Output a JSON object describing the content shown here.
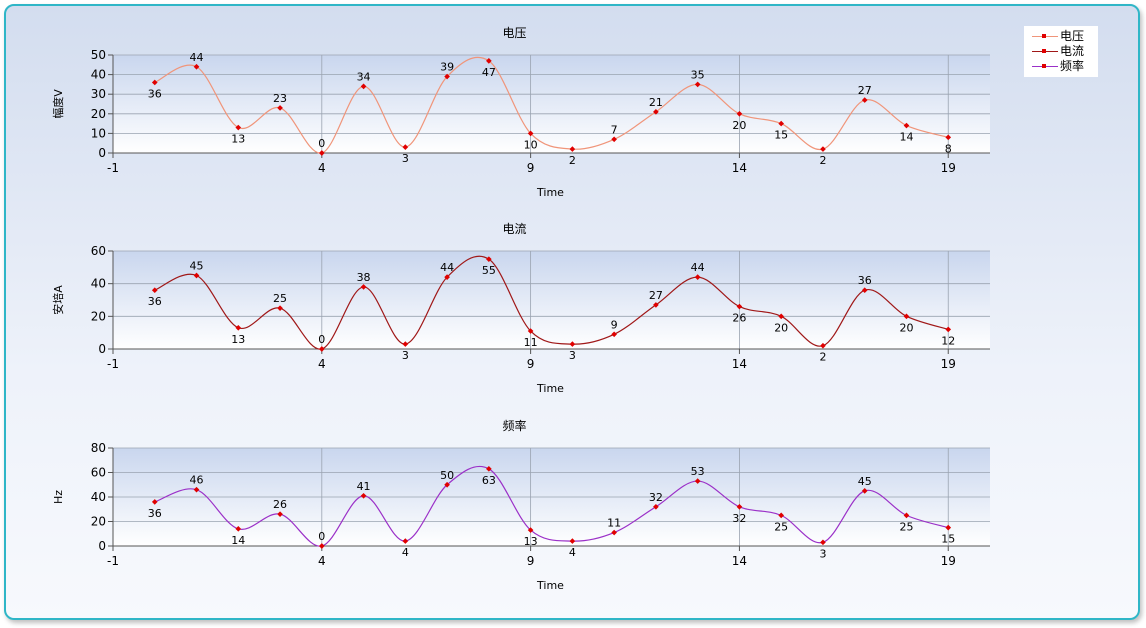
{
  "legend": {
    "items": [
      {
        "label": "电压",
        "color": "#f0957a"
      },
      {
        "label": "电流",
        "color": "#a01818"
      },
      {
        "label": "频率",
        "color": "#9b30c8"
      }
    ]
  },
  "colors": {
    "marker": "#e00000"
  },
  "chart_data": [
    {
      "type": "line",
      "title": "电压",
      "xlabel": "Time",
      "ylabel": "幅度V",
      "xlim": [
        -1,
        20
      ],
      "ylim": [
        0,
        50
      ],
      "x_ticks": [
        "-1",
        "4",
        "9",
        "14",
        "19"
      ],
      "y_ticks": [
        "0",
        "10",
        "20",
        "30",
        "40",
        "50"
      ],
      "smooth": true,
      "series": [
        {
          "name": "电压",
          "x": [
            0,
            1,
            2,
            3,
            4,
            5,
            6,
            7,
            8,
            9,
            10,
            11,
            12,
            13,
            14,
            15,
            16,
            17,
            18,
            19
          ],
          "values": [
            36,
            44,
            13,
            23,
            0,
            34,
            3,
            39,
            47,
            10,
            2,
            7,
            21,
            35,
            20,
            15,
            2,
            27,
            14,
            8
          ]
        }
      ]
    },
    {
      "type": "line",
      "title": "电流",
      "xlabel": "Time",
      "ylabel": "安培A",
      "xlim": [
        -1,
        20
      ],
      "ylim": [
        0,
        60
      ],
      "x_ticks": [
        "-1",
        "4",
        "9",
        "14",
        "19"
      ],
      "y_ticks": [
        "0",
        "20",
        "40",
        "60"
      ],
      "smooth": true,
      "series": [
        {
          "name": "电流",
          "x": [
            0,
            1,
            2,
            3,
            4,
            5,
            6,
            7,
            8,
            9,
            10,
            11,
            12,
            13,
            14,
            15,
            16,
            17,
            18,
            19
          ],
          "values": [
            36,
            45,
            13,
            25,
            0,
            38,
            3,
            44,
            55,
            11,
            3,
            9,
            27,
            44,
            26,
            20,
            2,
            36,
            20,
            12
          ]
        }
      ]
    },
    {
      "type": "line",
      "title": "频率",
      "xlabel": "Time",
      "ylabel": "Hz",
      "xlim": [
        -1,
        20
      ],
      "ylim": [
        0,
        80
      ],
      "x_ticks": [
        "-1",
        "4",
        "9",
        "14",
        "19"
      ],
      "y_ticks": [
        "0",
        "20",
        "40",
        "60",
        "80"
      ],
      "smooth": true,
      "series": [
        {
          "name": "频率",
          "x": [
            0,
            1,
            2,
            3,
            4,
            5,
            6,
            7,
            8,
            9,
            10,
            11,
            12,
            13,
            14,
            15,
            16,
            17,
            18,
            19
          ],
          "values": [
            36,
            46,
            14,
            26,
            0,
            41,
            4,
            50,
            63,
            13,
            4,
            11,
            32,
            53,
            32,
            25,
            3,
            45,
            25,
            15
          ]
        }
      ]
    }
  ]
}
